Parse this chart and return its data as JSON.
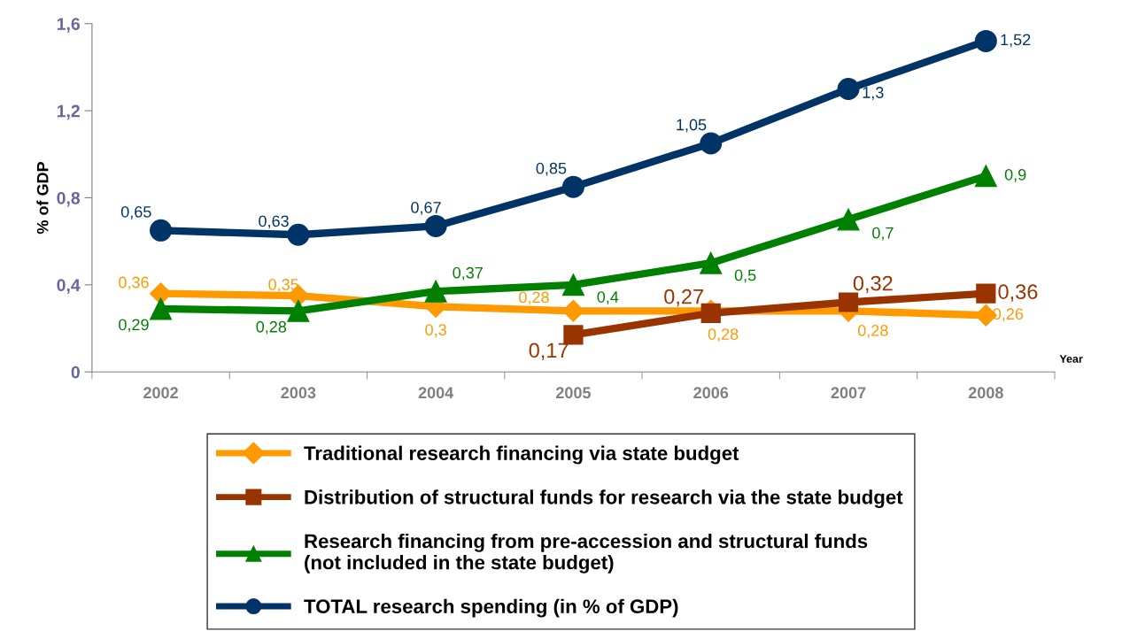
{
  "chart_data": {
    "type": "line",
    "ylabel": "% of GDP",
    "xlabel": "Year",
    "categories": [
      "2002",
      "2003",
      "2004",
      "2005",
      "2006",
      "2007",
      "2008"
    ],
    "ylim": [
      0,
      1.6
    ],
    "yticks": [
      0,
      {
        "value": 0.4,
        "label": "0,4"
      },
      {
        "value": 0.8,
        "label": "0,8"
      },
      {
        "value": 1.2,
        "label": "1,2"
      },
      {
        "value": 1.6,
        "label": "1,6"
      }
    ],
    "grid": false,
    "legend": "bottom",
    "line_style": "solid",
    "series": [
      {
        "name": "Traditional research financing via state budget",
        "color": "#ff9900",
        "marker": "diamond",
        "values": [
          0.36,
          0.35,
          0.3,
          0.28,
          0.28,
          0.28,
          0.26
        ],
        "value_labels": [
          "0,36",
          "0,35",
          "0,3",
          "0,28",
          "0,28",
          "0,28",
          "0,26"
        ]
      },
      {
        "name": "Distribution of structural funds for research via the state budget",
        "color": "#993300",
        "marker": "square",
        "values": [
          null,
          null,
          null,
          0.17,
          0.27,
          0.32,
          0.36
        ],
        "value_labels": [
          null,
          null,
          null,
          "0,17",
          "0,27",
          "0,32",
          "0,36"
        ]
      },
      {
        "name": "Research financing from pre-accession and structural funds\n(not included in the state budget)",
        "color": "#008000",
        "marker": "triangle",
        "values": [
          0.29,
          0.28,
          0.37,
          0.4,
          0.5,
          0.7,
          0.9
        ],
        "value_labels": [
          "0,29",
          "0,28",
          "0,37",
          "0,4",
          "0,5",
          "0,7",
          "0,9"
        ]
      },
      {
        "name": "TOTAL research spending (in % of GDP)",
        "color": "#003366",
        "marker": "circle",
        "values": [
          0.65,
          0.63,
          0.67,
          0.85,
          1.05,
          1.3,
          1.52
        ],
        "value_labels": [
          "0,65",
          "0,63",
          "0,67",
          "0,85",
          "1,05",
          "1,3",
          "1,52"
        ]
      }
    ]
  }
}
